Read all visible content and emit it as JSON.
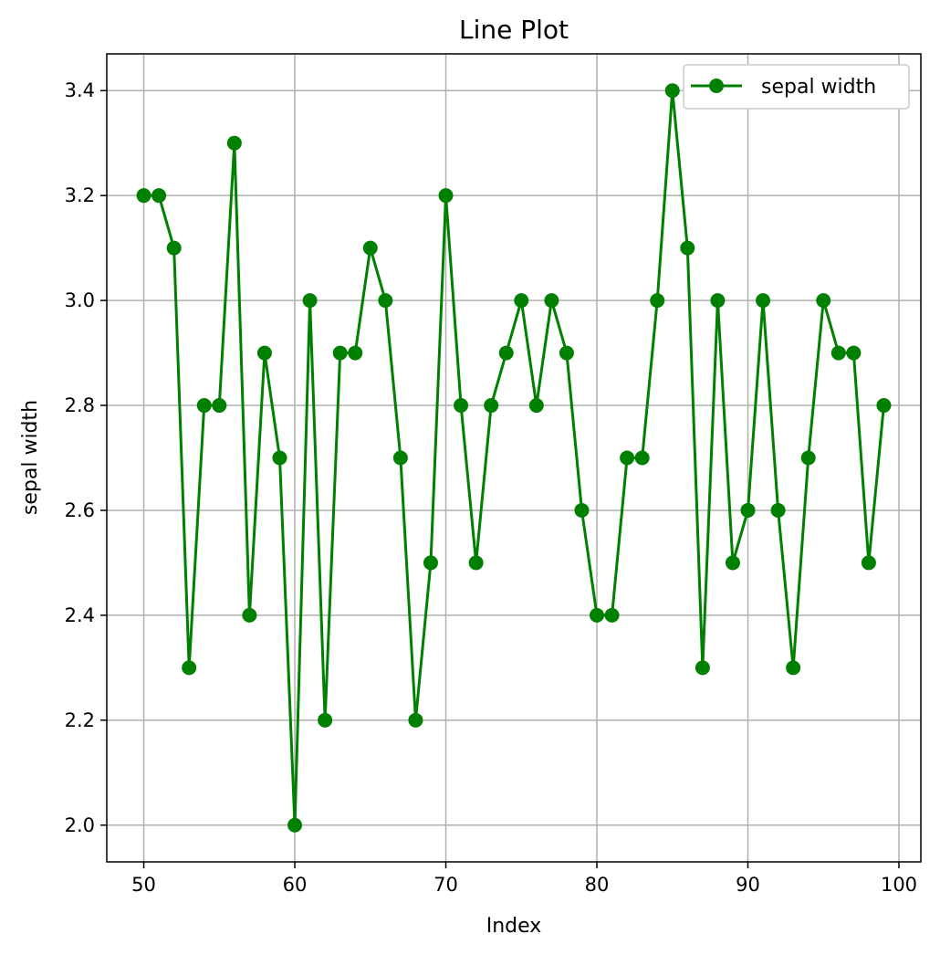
{
  "chart_data": {
    "type": "line",
    "title": "Line Plot",
    "xlabel": "Index",
    "ylabel": "sepal width",
    "xlim": [
      47.55,
      101.45
    ],
    "ylim": [
      1.93,
      3.47
    ],
    "xticks": [
      50,
      60,
      70,
      80,
      90,
      100
    ],
    "yticks": [
      2.0,
      2.2,
      2.4,
      2.6,
      2.8,
      3.0,
      3.2,
      3.4
    ],
    "grid": true,
    "legend_position": "top-right",
    "x": [
      50,
      51,
      52,
      53,
      54,
      55,
      56,
      57,
      58,
      59,
      60,
      61,
      62,
      63,
      64,
      65,
      66,
      67,
      68,
      69,
      70,
      71,
      72,
      73,
      74,
      75,
      76,
      77,
      78,
      79,
      80,
      81,
      82,
      83,
      84,
      85,
      86,
      87,
      88,
      89,
      90,
      91,
      92,
      93,
      94,
      95,
      96,
      97,
      98,
      99
    ],
    "series": [
      {
        "name": "sepal width",
        "color": "#008000",
        "marker": "circle",
        "values": [
          3.2,
          3.2,
          3.1,
          2.3,
          2.8,
          2.8,
          3.3,
          2.4,
          2.9,
          2.7,
          2.0,
          3.0,
          2.2,
          2.9,
          2.9,
          3.1,
          3.0,
          2.7,
          2.2,
          2.5,
          3.2,
          2.8,
          2.5,
          2.8,
          2.9,
          3.0,
          2.8,
          3.0,
          2.9,
          2.6,
          2.4,
          2.4,
          2.7,
          2.7,
          3.0,
          3.4,
          3.1,
          2.3,
          3.0,
          2.5,
          2.6,
          3.0,
          2.6,
          2.3,
          2.7,
          3.0,
          2.9,
          2.9,
          2.5,
          2.8
        ]
      }
    ]
  }
}
